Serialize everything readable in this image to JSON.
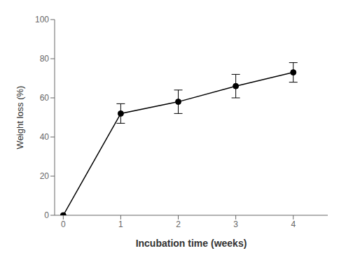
{
  "chart_data": {
    "type": "line",
    "x": [
      0,
      1,
      2,
      3,
      4
    ],
    "values": [
      0,
      52,
      58,
      66,
      73
    ],
    "yerr": [
      0,
      5,
      6,
      6,
      5
    ],
    "xlabel": "Incubation time (weeks)",
    "ylabel": "Weight loss (%)",
    "xlim": [
      -0.15,
      4.6
    ],
    "ylim": [
      0,
      100
    ],
    "xticks": [
      0,
      1,
      2,
      3,
      4
    ],
    "yticks": [
      0,
      20,
      40,
      60,
      80,
      100
    ],
    "color": "black",
    "marker": "o",
    "grid": false
  }
}
